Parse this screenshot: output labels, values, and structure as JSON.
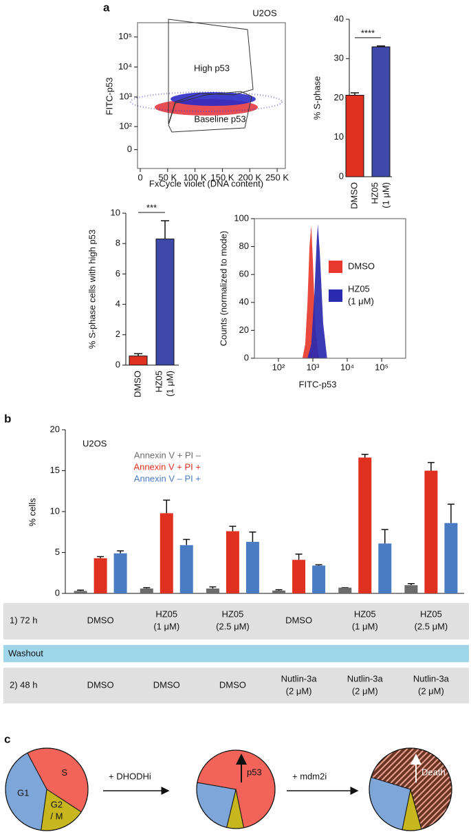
{
  "panels": [
    "a",
    "b",
    "c"
  ],
  "chart_data": [
    {
      "type": "scatter",
      "title": "U2OS",
      "xlabel": "FxCycle violet (DNA content)",
      "ylabel": "FITC-p53",
      "xlim": [
        -5000,
        265000
      ],
      "xticks": [
        0,
        {
          "value": 50000,
          "label": "50 K"
        },
        {
          "value": 100000,
          "label": "100 K"
        },
        {
          "value": 150000,
          "label": "150 K"
        },
        {
          "value": 200000,
          "label": "200 K"
        },
        {
          "value": 250000,
          "label": "250 K"
        }
      ],
      "ylim": [
        -70,
        300000
      ],
      "yscale": "asinh",
      "yticks": [
        0,
        {
          "value": 100,
          "label": "10²"
        },
        {
          "value": 1000,
          "label": "10³"
        },
        {
          "value": 10000,
          "label": "10⁴"
        },
        {
          "value": 100000,
          "label": "10⁵"
        }
      ],
      "annotations": [
        "High p53",
        "Baseline p53"
      ],
      "point_colors": [
        "#e0202a",
        "#2b2bc8"
      ]
    },
    {
      "type": "bar",
      "ylabel": "% S-phase",
      "categories": [
        [
          "DMSO"
        ],
        [
          "HZ05",
          "(1 μM)"
        ]
      ],
      "values": [
        20.7,
        33
      ],
      "errors": [
        0.6,
        0.2
      ],
      "colors": [
        "#e03020",
        "#3d4aa8"
      ],
      "ylim": [
        0,
        40
      ],
      "yticks": [
        0,
        10,
        20,
        30,
        40
      ],
      "significance": "****"
    },
    {
      "type": "bar",
      "ylabel": "% S-phase cells with high p53",
      "categories": [
        [
          "DMSO"
        ],
        [
          "HZ05",
          "(1 μM)"
        ]
      ],
      "values": [
        0.6,
        8.3
      ],
      "errors": [
        0.15,
        1.2
      ],
      "colors": [
        "#e03020",
        "#3d4aa8"
      ],
      "ylim": [
        0,
        10
      ],
      "yticks": [
        0,
        2,
        4,
        6,
        8,
        10
      ],
      "significance": "***"
    },
    {
      "type": "area",
      "ylabel": "Counts (normalized to mode)",
      "xlabel": "FITC-p53",
      "xscale": "log",
      "xlim": [
        20,
        500000
      ],
      "xticks": [
        {
          "value": 100,
          "label": "10²"
        },
        {
          "value": 1000,
          "label": "10³"
        },
        {
          "value": 10000,
          "label": "10⁴"
        },
        {
          "value": 100000,
          "label": "10⁵"
        }
      ],
      "ylim": [
        0,
        100
      ],
      "yticks": [
        0,
        20,
        40,
        60,
        80,
        100
      ],
      "series": [
        {
          "name": [
            "DMSO"
          ],
          "color": "#e8392e",
          "x": [
            500,
            600,
            700,
            800,
            900,
            1000,
            1200,
            1500
          ],
          "values": [
            0,
            10,
            40,
            80,
            95,
            70,
            20,
            0
          ]
        },
        {
          "name": [
            "HZ05",
            "(1 μM)"
          ],
          "color": "#2a2ab0",
          "x": [
            700,
            900,
            1100,
            1300,
            1400,
            1600,
            2000,
            2600
          ],
          "values": [
            0,
            10,
            45,
            85,
            96,
            75,
            25,
            0
          ]
        }
      ]
    },
    {
      "type": "grouped_bar",
      "title": "U2OS",
      "ylabel": "% cells",
      "ylim": [
        0,
        20
      ],
      "yticks": [
        0,
        5,
        10,
        15,
        20
      ],
      "series": [
        {
          "name": "Annexin V + PI –",
          "color": "#6b6b6b",
          "values": [
            0.3,
            0.6,
            0.6,
            0.35,
            0.7,
            1.0
          ],
          "errors": [
            0.1,
            0.1,
            0.2,
            0.1,
            0,
            0.2
          ]
        },
        {
          "name": "Annexin V + PI +",
          "color": "#e03020",
          "values": [
            4.3,
            9.8,
            7.6,
            4.1,
            16.6,
            15.0
          ],
          "errors": [
            0.2,
            1.6,
            0.6,
            0.7,
            0.4,
            1.0
          ]
        },
        {
          "name": "Annexin V – PI +",
          "color": "#4a7cc4",
          "values": [
            4.9,
            5.9,
            6.3,
            3.4,
            6.1,
            8.6
          ],
          "errors": [
            0.3,
            0.7,
            1.2,
            0.1,
            1.7,
            2.3
          ]
        }
      ],
      "treatments": {
        "rows": [
          {
            "label": "1) 72 h",
            "cells": [
              [
                "DMSO"
              ],
              [
                "HZ05",
                "(1 μM)"
              ],
              [
                "HZ05",
                "(2.5 μM)"
              ],
              [
                "DMSO"
              ],
              [
                "HZ05",
                "(1 μM)"
              ],
              [
                "HZ05",
                "(2.5 μM)"
              ]
            ]
          },
          {
            "label": "2) 48 h",
            "cells": [
              [
                "DMSO"
              ],
              [
                "DMSO"
              ],
              [
                "DMSO"
              ],
              [
                "Nutlin-3a",
                "(2 μM)"
              ],
              [
                "Nutlin-3a",
                "(2 μM)"
              ],
              [
                "Nutlin-3a",
                "(2 μM)"
              ]
            ]
          }
        ],
        "washout": "Washout"
      }
    },
    {
      "type": "pie",
      "annotations": [
        "+ DHODHi",
        "+ mdm2i"
      ],
      "pies": [
        {
          "categories": [
            [
              "S"
            ],
            [
              "G2",
              "/ M"
            ],
            [
              "G1"
            ]
          ],
          "values": [
            42,
            18,
            40
          ],
          "colors": [
            "#f2645a",
            "#c8b61e",
            "#7ea6d8"
          ]
        },
        {
          "categories": [
            null,
            null,
            null
          ],
          "values": [
            69,
            7,
            24
          ],
          "colors": [
            "#f2645a",
            "#c8b61e",
            "#7ea6d8"
          ],
          "arrow_label": "p53"
        },
        {
          "categories": [
            null,
            null,
            null
          ],
          "values": [
            66,
            7.5,
            26.5
          ],
          "colors": [
            "hatch",
            "#c8b61e",
            "#7ea6d8"
          ],
          "arrow_label": "Death"
        }
      ]
    }
  ]
}
